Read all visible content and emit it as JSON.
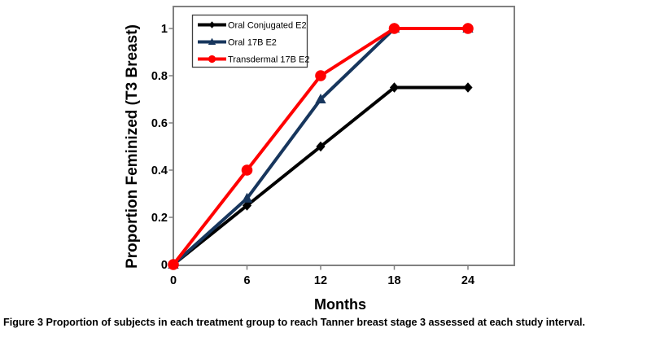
{
  "figure": {
    "caption_label": "Figure 3",
    "caption_text": "Proportion of subjects in each treatment group to reach Tanner breast stage 3 assessed at each study interval."
  },
  "chart_data": {
    "type": "line",
    "title": "",
    "xlabel": "Months",
    "ylabel": "Proportion Feminized (T3 Breast)",
    "x": [
      0,
      6,
      12,
      18,
      24
    ],
    "x_ticks": [
      "0",
      "6",
      "12",
      "18",
      "24"
    ],
    "y_tick_values": [
      0,
      0.2,
      0.4,
      0.6,
      0.8,
      1
    ],
    "y_ticks": [
      "0",
      "0.2",
      "0.4",
      "0.6",
      "0.8",
      "1"
    ],
    "xlim": [
      0,
      27.8
    ],
    "ylim": [
      0,
      1.093
    ],
    "grid": false,
    "legend_position": "top-left",
    "axis_color": "#808080",
    "legend_border_color": "#404040",
    "series": [
      {
        "name": "Oral Conjugated E2",
        "color": "#000000",
        "marker": "diamond",
        "values": [
          0,
          0.25,
          0.5,
          0.75,
          0.75
        ]
      },
      {
        "name": "Oral 17B E2",
        "color": "#17365d",
        "marker": "triangle",
        "values": [
          0,
          0.28,
          0.7,
          1,
          1
        ]
      },
      {
        "name": "Transdermal 17B E2",
        "color": "#ff0000",
        "marker": "circle",
        "values": [
          0,
          0.4,
          0.8,
          1,
          1
        ]
      }
    ]
  }
}
